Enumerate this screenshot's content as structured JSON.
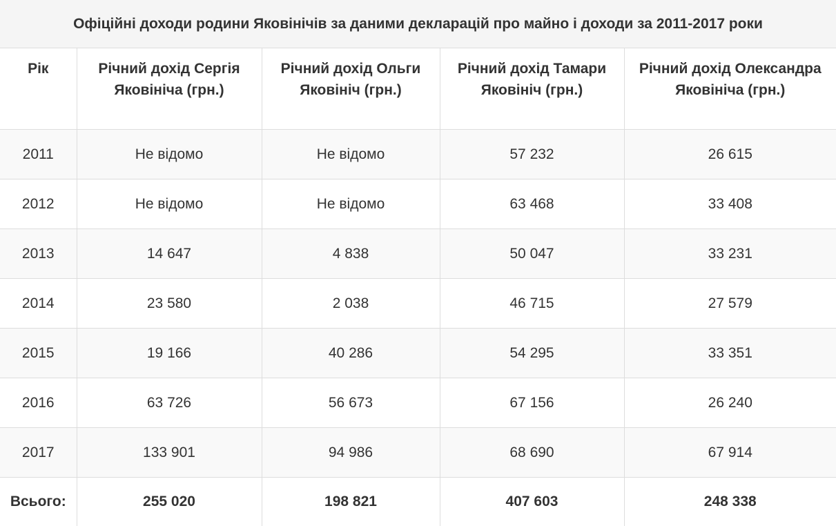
{
  "table": {
    "caption": "Офіційні доходи родини Яковінічів за даними декларацій про майно і доходи за 2011-2017 роки",
    "headers": [
      "Рік",
      "Річний дохід Сергія Яковініча (грн.)",
      "Річний дохід Ольги Яковініч (грн.)",
      "Річний дохід Тамари Яковініч (грн.)",
      "Річний дохід Олександра Яковініча (грн.)"
    ],
    "rows": [
      [
        "2011",
        "Не відомо",
        "Не відомо",
        "57 232",
        "26 615"
      ],
      [
        "2012",
        "Не відомо",
        "Не відомо",
        "63 468",
        "33 408"
      ],
      [
        "2013",
        "14 647",
        "4 838",
        "50 047",
        "33 231"
      ],
      [
        "2014",
        "23 580",
        "2 038",
        "46 715",
        "27 579"
      ],
      [
        "2015",
        "19 166",
        "40 286",
        "54 295",
        "33 351"
      ],
      [
        "2016",
        "63 726",
        "56 673",
        "67 156",
        "26 240"
      ],
      [
        "2017",
        "133 901",
        "94 986",
        "68 690",
        "67 914"
      ]
    ],
    "total": [
      "Всього:",
      "255 020",
      "198 821",
      "407 603",
      "248 338"
    ]
  }
}
